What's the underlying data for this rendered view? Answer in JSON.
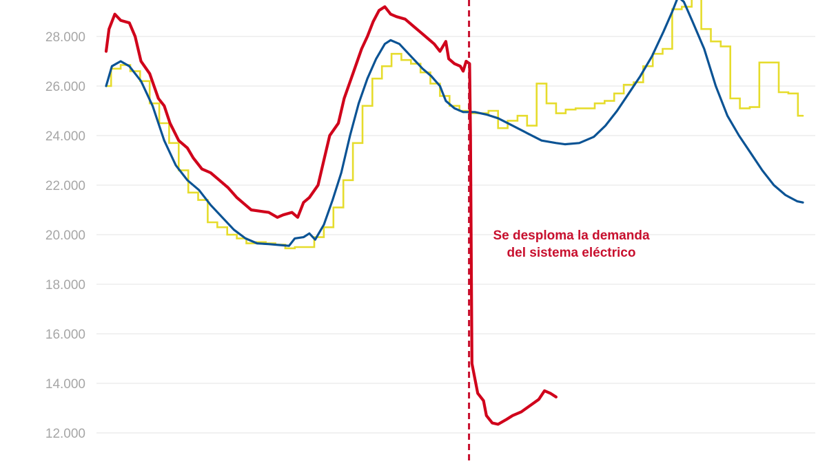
{
  "chart_data": {
    "type": "line",
    "title": "",
    "xlabel": "",
    "ylabel": "",
    "x_range": [
      0,
      24
    ],
    "ylim": [
      11000,
      29500
    ],
    "grid": "horizontal",
    "y_ticks": [
      {
        "value": 12000,
        "label": "12.000"
      },
      {
        "value": 14000,
        "label": "14.000"
      },
      {
        "value": 16000,
        "label": "16.000"
      },
      {
        "value": 18000,
        "label": "18.000"
      },
      {
        "value": 20000,
        "label": "20.000"
      },
      {
        "value": 22000,
        "label": "22.000"
      },
      {
        "value": 24000,
        "label": "24.000"
      },
      {
        "value": 26000,
        "label": "26.000"
      },
      {
        "value": 28000,
        "label": "28.000"
      }
    ],
    "colors": {
      "real": "#d0021b",
      "forecast": "#0b5394",
      "scheduled": "#e6dc2c",
      "event": "#c8102e",
      "grid": "#e3e3e3",
      "tick": "#a6a6a6"
    },
    "event_line": {
      "x": 12.5
    },
    "annotation": {
      "lines": [
        "Se desploma la demanda",
        "del sistema eléctrico"
      ]
    },
    "series": [
      {
        "key": "real",
        "style": "line",
        "values": [
          [
            0.0,
            27400
          ],
          [
            0.1,
            28300
          ],
          [
            0.3,
            28900
          ],
          [
            0.5,
            28650
          ],
          [
            0.8,
            28550
          ],
          [
            1.0,
            28000
          ],
          [
            1.2,
            27000
          ],
          [
            1.5,
            26500
          ],
          [
            1.8,
            25500
          ],
          [
            2.0,
            25200
          ],
          [
            2.2,
            24500
          ],
          [
            2.5,
            23800
          ],
          [
            2.8,
            23500
          ],
          [
            3.0,
            23100
          ],
          [
            3.3,
            22650
          ],
          [
            3.6,
            22500
          ],
          [
            3.9,
            22200
          ],
          [
            4.2,
            21900
          ],
          [
            4.5,
            21500
          ],
          [
            4.8,
            21200
          ],
          [
            5.0,
            21000
          ],
          [
            5.3,
            20950
          ],
          [
            5.6,
            20900
          ],
          [
            5.9,
            20700
          ],
          [
            6.1,
            20800
          ],
          [
            6.4,
            20900
          ],
          [
            6.6,
            20700
          ],
          [
            6.8,
            21300
          ],
          [
            7.0,
            21500
          ],
          [
            7.3,
            22000
          ],
          [
            7.5,
            23000
          ],
          [
            7.7,
            24000
          ],
          [
            8.0,
            24500
          ],
          [
            8.2,
            25500
          ],
          [
            8.5,
            26500
          ],
          [
            8.8,
            27500
          ],
          [
            9.0,
            28000
          ],
          [
            9.2,
            28600
          ],
          [
            9.4,
            29050
          ],
          [
            9.6,
            29200
          ],
          [
            9.8,
            28900
          ],
          [
            10.0,
            28800
          ],
          [
            10.3,
            28700
          ],
          [
            10.6,
            28400
          ],
          [
            10.8,
            28200
          ],
          [
            11.0,
            28000
          ],
          [
            11.3,
            27700
          ],
          [
            11.5,
            27400
          ],
          [
            11.7,
            27800
          ],
          [
            11.8,
            27100
          ],
          [
            12.0,
            26900
          ],
          [
            12.2,
            26800
          ],
          [
            12.3,
            26600
          ],
          [
            12.4,
            27000
          ],
          [
            12.52,
            26900
          ],
          [
            12.55,
            24000
          ],
          [
            12.6,
            14800
          ],
          [
            12.7,
            14200
          ],
          [
            12.8,
            13600
          ],
          [
            13.0,
            13300
          ],
          [
            13.1,
            12700
          ],
          [
            13.3,
            12400
          ],
          [
            13.5,
            12350
          ],
          [
            13.8,
            12550
          ],
          [
            14.0,
            12700
          ],
          [
            14.3,
            12850
          ],
          [
            14.6,
            13100
          ],
          [
            14.9,
            13350
          ],
          [
            15.1,
            13700
          ],
          [
            15.3,
            13600
          ],
          [
            15.5,
            13450
          ]
        ]
      },
      {
        "key": "forecast",
        "style": "line",
        "values": [
          [
            0.0,
            26000
          ],
          [
            0.2,
            26800
          ],
          [
            0.5,
            27000
          ],
          [
            0.8,
            26800
          ],
          [
            1.2,
            26200
          ],
          [
            1.6,
            25200
          ],
          [
            2.0,
            23800
          ],
          [
            2.4,
            22800
          ],
          [
            2.8,
            22200
          ],
          [
            3.2,
            21800
          ],
          [
            3.6,
            21200
          ],
          [
            4.0,
            20700
          ],
          [
            4.4,
            20200
          ],
          [
            4.8,
            19850
          ],
          [
            5.2,
            19650
          ],
          [
            5.6,
            19620
          ],
          [
            6.0,
            19580
          ],
          [
            6.3,
            19550
          ],
          [
            6.5,
            19850
          ],
          [
            6.8,
            19900
          ],
          [
            7.0,
            20050
          ],
          [
            7.2,
            19800
          ],
          [
            7.5,
            20400
          ],
          [
            7.8,
            21400
          ],
          [
            8.1,
            22500
          ],
          [
            8.4,
            24000
          ],
          [
            8.7,
            25300
          ],
          [
            9.0,
            26300
          ],
          [
            9.3,
            27100
          ],
          [
            9.6,
            27700
          ],
          [
            9.8,
            27850
          ],
          [
            10.1,
            27700
          ],
          [
            10.5,
            27200
          ],
          [
            10.9,
            26700
          ],
          [
            11.2,
            26400
          ],
          [
            11.5,
            26000
          ],
          [
            11.7,
            25400
          ],
          [
            12.0,
            25100
          ],
          [
            12.3,
            24950
          ],
          [
            12.7,
            24950
          ],
          [
            13.1,
            24850
          ],
          [
            13.5,
            24700
          ],
          [
            14.0,
            24400
          ],
          [
            14.5,
            24100
          ],
          [
            15.0,
            23800
          ],
          [
            15.5,
            23700
          ],
          [
            15.8,
            23650
          ],
          [
            16.3,
            23700
          ],
          [
            16.8,
            23950
          ],
          [
            17.2,
            24400
          ],
          [
            17.6,
            25000
          ],
          [
            18.0,
            25700
          ],
          [
            18.4,
            26400
          ],
          [
            18.8,
            27200
          ],
          [
            19.2,
            28200
          ],
          [
            19.5,
            29000
          ],
          [
            19.7,
            29600
          ],
          [
            19.9,
            29400
          ],
          [
            20.2,
            28600
          ],
          [
            20.6,
            27500
          ],
          [
            21.0,
            26000
          ],
          [
            21.4,
            24800
          ],
          [
            21.8,
            24000
          ],
          [
            22.2,
            23300
          ],
          [
            22.6,
            22600
          ],
          [
            23.0,
            22000
          ],
          [
            23.4,
            21600
          ],
          [
            23.8,
            21350
          ],
          [
            24.0,
            21300
          ]
        ]
      },
      {
        "key": "scheduled",
        "style": "step",
        "values": [
          [
            0.0,
            26000
          ],
          [
            0.17,
            26700
          ],
          [
            0.5,
            26850
          ],
          [
            0.83,
            26600
          ],
          [
            1.17,
            26200
          ],
          [
            1.5,
            25300
          ],
          [
            1.83,
            24500
          ],
          [
            2.17,
            23700
          ],
          [
            2.5,
            22600
          ],
          [
            2.83,
            21700
          ],
          [
            3.17,
            21400
          ],
          [
            3.5,
            20500
          ],
          [
            3.83,
            20300
          ],
          [
            4.17,
            20000
          ],
          [
            4.5,
            19850
          ],
          [
            4.83,
            19650
          ],
          [
            5.17,
            19700
          ],
          [
            5.5,
            19650
          ],
          [
            5.83,
            19600
          ],
          [
            6.17,
            19450
          ],
          [
            6.5,
            19500
          ],
          [
            6.83,
            19500
          ],
          [
            7.17,
            19900
          ],
          [
            7.5,
            20300
          ],
          [
            7.83,
            21100
          ],
          [
            8.17,
            22200
          ],
          [
            8.5,
            23700
          ],
          [
            8.83,
            25200
          ],
          [
            9.17,
            26300
          ],
          [
            9.5,
            26800
          ],
          [
            9.83,
            27300
          ],
          [
            10.17,
            27050
          ],
          [
            10.5,
            26900
          ],
          [
            10.83,
            26550
          ],
          [
            11.17,
            26100
          ],
          [
            11.5,
            25600
          ],
          [
            11.83,
            25200
          ],
          [
            12.17,
            25000
          ],
          [
            12.5,
            24900
          ],
          [
            12.83,
            24900
          ],
          [
            13.17,
            25000
          ],
          [
            13.5,
            24300
          ],
          [
            13.83,
            24600
          ],
          [
            14.17,
            24800
          ],
          [
            14.5,
            24400
          ],
          [
            14.83,
            26100
          ],
          [
            15.17,
            25300
          ],
          [
            15.5,
            24900
          ],
          [
            15.83,
            25050
          ],
          [
            16.17,
            25100
          ],
          [
            16.5,
            25100
          ],
          [
            16.83,
            25300
          ],
          [
            17.17,
            25400
          ],
          [
            17.5,
            25700
          ],
          [
            17.83,
            26050
          ],
          [
            18.17,
            26150
          ],
          [
            18.5,
            26800
          ],
          [
            18.83,
            27300
          ],
          [
            19.17,
            27500
          ],
          [
            19.5,
            29100
          ],
          [
            19.83,
            29200
          ],
          [
            20.17,
            29600
          ],
          [
            20.5,
            28300
          ],
          [
            20.83,
            27800
          ],
          [
            21.17,
            27600
          ],
          [
            21.5,
            25500
          ],
          [
            21.83,
            25100
          ],
          [
            22.17,
            25150
          ],
          [
            22.5,
            26950
          ],
          [
            22.83,
            26950
          ],
          [
            23.17,
            25750
          ],
          [
            23.5,
            25700
          ],
          [
            23.83,
            24800
          ],
          [
            24.0,
            24800
          ]
        ]
      }
    ]
  }
}
